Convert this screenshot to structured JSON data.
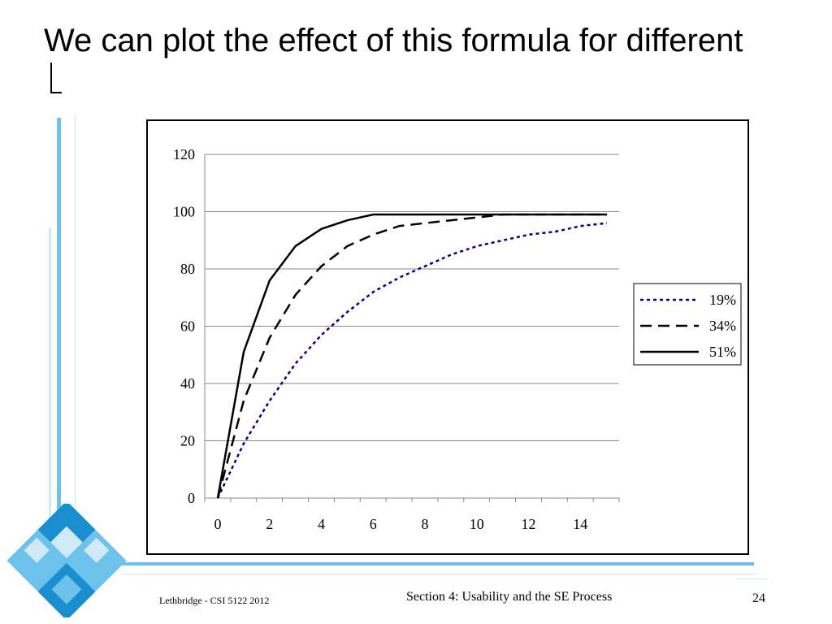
{
  "slide": {
    "title": "We can plot the effect of this formula for different",
    "footer_left": "Lethbridge - CSI 5122 2012",
    "footer_center": "Section 4: Usability and the SE Process",
    "page_number": "24"
  },
  "colors": {
    "accent_light": "#cfe9f7",
    "accent_mid": "#6cc2ea",
    "accent_dark": "#1a8fd0",
    "series_19": "#000080",
    "series_34": "#000000",
    "series_51": "#000000"
  },
  "chart_data": {
    "type": "line",
    "title": "",
    "xlabel": "",
    "ylabel": "",
    "xlim": [
      0,
      16
    ],
    "ylim": [
      0,
      120
    ],
    "x_ticks": [
      0,
      2,
      4,
      6,
      8,
      10,
      12,
      14
    ],
    "y_ticks": [
      0,
      20,
      40,
      60,
      80,
      100,
      120
    ],
    "grid": "horizontal",
    "legend_position": "right",
    "x": [
      0,
      1,
      2,
      3,
      4,
      5,
      6,
      7,
      8,
      9,
      10,
      11,
      12,
      13,
      14,
      15
    ],
    "series": [
      {
        "name": "19%",
        "style": "dotted",
        "color": "#000080",
        "values": [
          0,
          19,
          34,
          47,
          57,
          65,
          72,
          77,
          81,
          85,
          88,
          90,
          92,
          93,
          95,
          96
        ]
      },
      {
        "name": "34%",
        "style": "dashed",
        "color": "#000000",
        "values": [
          0,
          34,
          56,
          71,
          81,
          88,
          92,
          95,
          96,
          97,
          98,
          99,
          99,
          99,
          99,
          99
        ]
      },
      {
        "name": "51%",
        "style": "solid",
        "color": "#000000",
        "values": [
          0,
          51,
          76,
          88,
          94,
          97,
          99,
          99,
          99,
          99,
          99,
          99,
          99,
          99,
          99,
          99
        ]
      }
    ]
  }
}
